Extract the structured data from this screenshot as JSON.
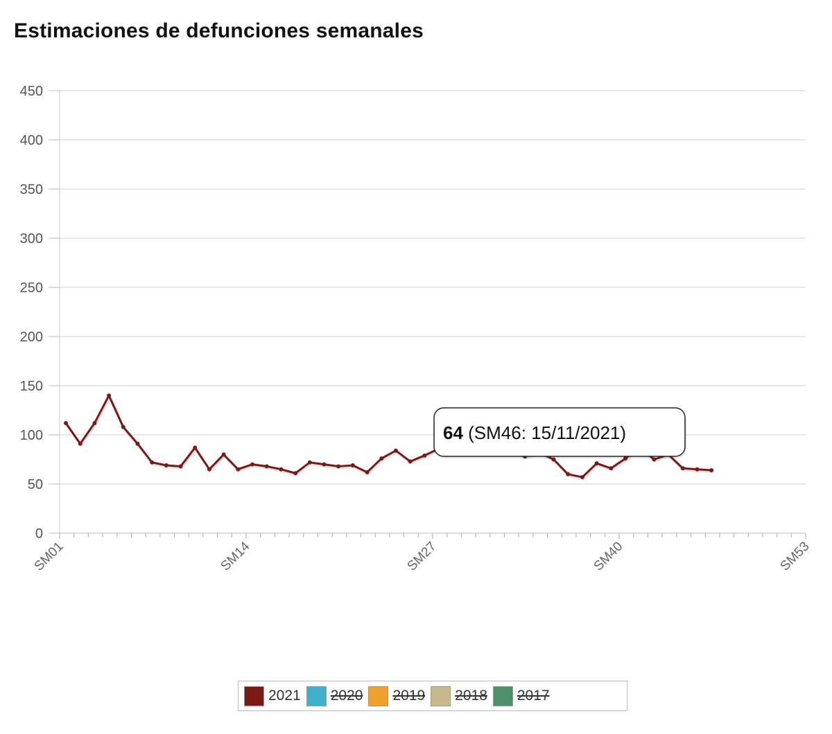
{
  "chart_data": {
    "type": "line",
    "title": "Estimaciones de defunciones semanales",
    "xlabel": "",
    "ylabel": "",
    "ylim": [
      0,
      450
    ],
    "yticks": [
      "0",
      "50",
      "100",
      "150",
      "200",
      "250",
      "300",
      "350",
      "400",
      "450"
    ],
    "xticks": [
      "SM01",
      "SM14",
      "SM27",
      "SM40",
      "SM53"
    ],
    "grid": "horizontal",
    "legend_position": "bottom",
    "series": [
      {
        "name": "2021",
        "color": "#7b1a14",
        "visible": true,
        "x": [
          "SM01",
          "SM02",
          "SM03",
          "SM04",
          "SM05",
          "SM06",
          "SM07",
          "SM08",
          "SM09",
          "SM10",
          "SM11",
          "SM12",
          "SM13",
          "SM14",
          "SM15",
          "SM16",
          "SM17",
          "SM18",
          "SM19",
          "SM20",
          "SM21",
          "SM22",
          "SM23",
          "SM24",
          "SM25",
          "SM26",
          "SM27",
          "SM28",
          "SM29",
          "SM30",
          "SM31",
          "SM32",
          "SM33",
          "SM34",
          "SM35",
          "SM36",
          "SM37",
          "SM38",
          "SM39",
          "SM40",
          "SM41",
          "SM42",
          "SM43",
          "SM44",
          "SM45",
          "SM46"
        ],
        "values": [
          112,
          91,
          112,
          140,
          108,
          91,
          72,
          69,
          68,
          87,
          65,
          80,
          65,
          70,
          68,
          65,
          61,
          72,
          70,
          68,
          69,
          62,
          76,
          84,
          73,
          79,
          86,
          85,
          83,
          82,
          83,
          84,
          78,
          82,
          75,
          60,
          57,
          71,
          66,
          76,
          87,
          75,
          80,
          66,
          65,
          64
        ]
      },
      {
        "name": "2020",
        "color": "#3fb1c9",
        "visible": false,
        "values": []
      },
      {
        "name": "2019",
        "color": "#f0a12c",
        "visible": false,
        "values": []
      },
      {
        "name": "2018",
        "color": "#c9b98a",
        "visible": false,
        "values": []
      },
      {
        "name": "2017",
        "color": "#4e8f6c",
        "visible": false,
        "values": []
      }
    ],
    "tooltip": {
      "value": "64",
      "detail": "(SM46: 15/11/2021)",
      "week": "SM46"
    }
  }
}
